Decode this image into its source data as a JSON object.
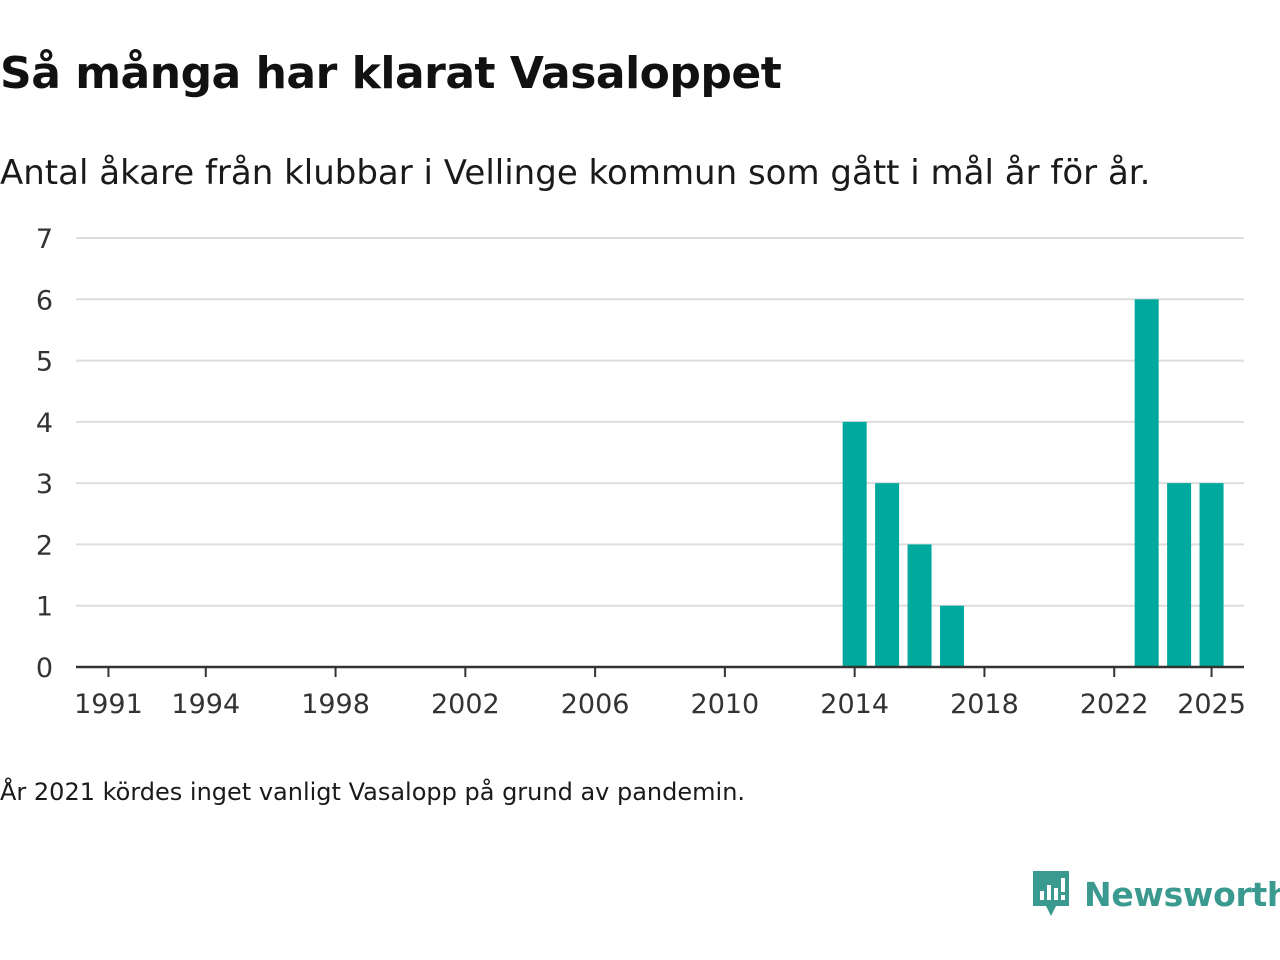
{
  "title": "Så många har klarat Vasaloppet",
  "subtitle": "Antal åkare från klubbar i Vellinge kommun som gått i mål år för år.",
  "footnote": "År 2021 kördes inget vanligt Vasalopp på grund av pandemin.",
  "brand": {
    "name": "Newsworthy",
    "color": "#3a9a8f",
    "icon": "newsworthy-logo-icon"
  },
  "colors": {
    "bar": "#00a99d",
    "grid": "#dddddd",
    "axis": "#333333",
    "text": "#333333"
  },
  "chart_data": {
    "type": "bar",
    "title": "Så många har klarat Vasaloppet",
    "subtitle": "Antal åkare från klubbar i Vellinge kommun som gått i mål år för år.",
    "xlabel": "",
    "ylabel": "",
    "xlim": [
      1990,
      2026
    ],
    "ylim": [
      0,
      7
    ],
    "yticks": [
      0,
      1,
      2,
      3,
      4,
      5,
      6,
      7
    ],
    "xticks": [
      1991,
      1994,
      1998,
      2002,
      2006,
      2010,
      2014,
      2018,
      2022,
      2025
    ],
    "grid": true,
    "series": [
      {
        "name": "Antal åkare",
        "x": [
          2014,
          2015,
          2016,
          2017,
          2023,
          2024,
          2025
        ],
        "values": [
          4,
          3,
          2,
          1,
          6,
          3,
          3
        ]
      }
    ]
  }
}
